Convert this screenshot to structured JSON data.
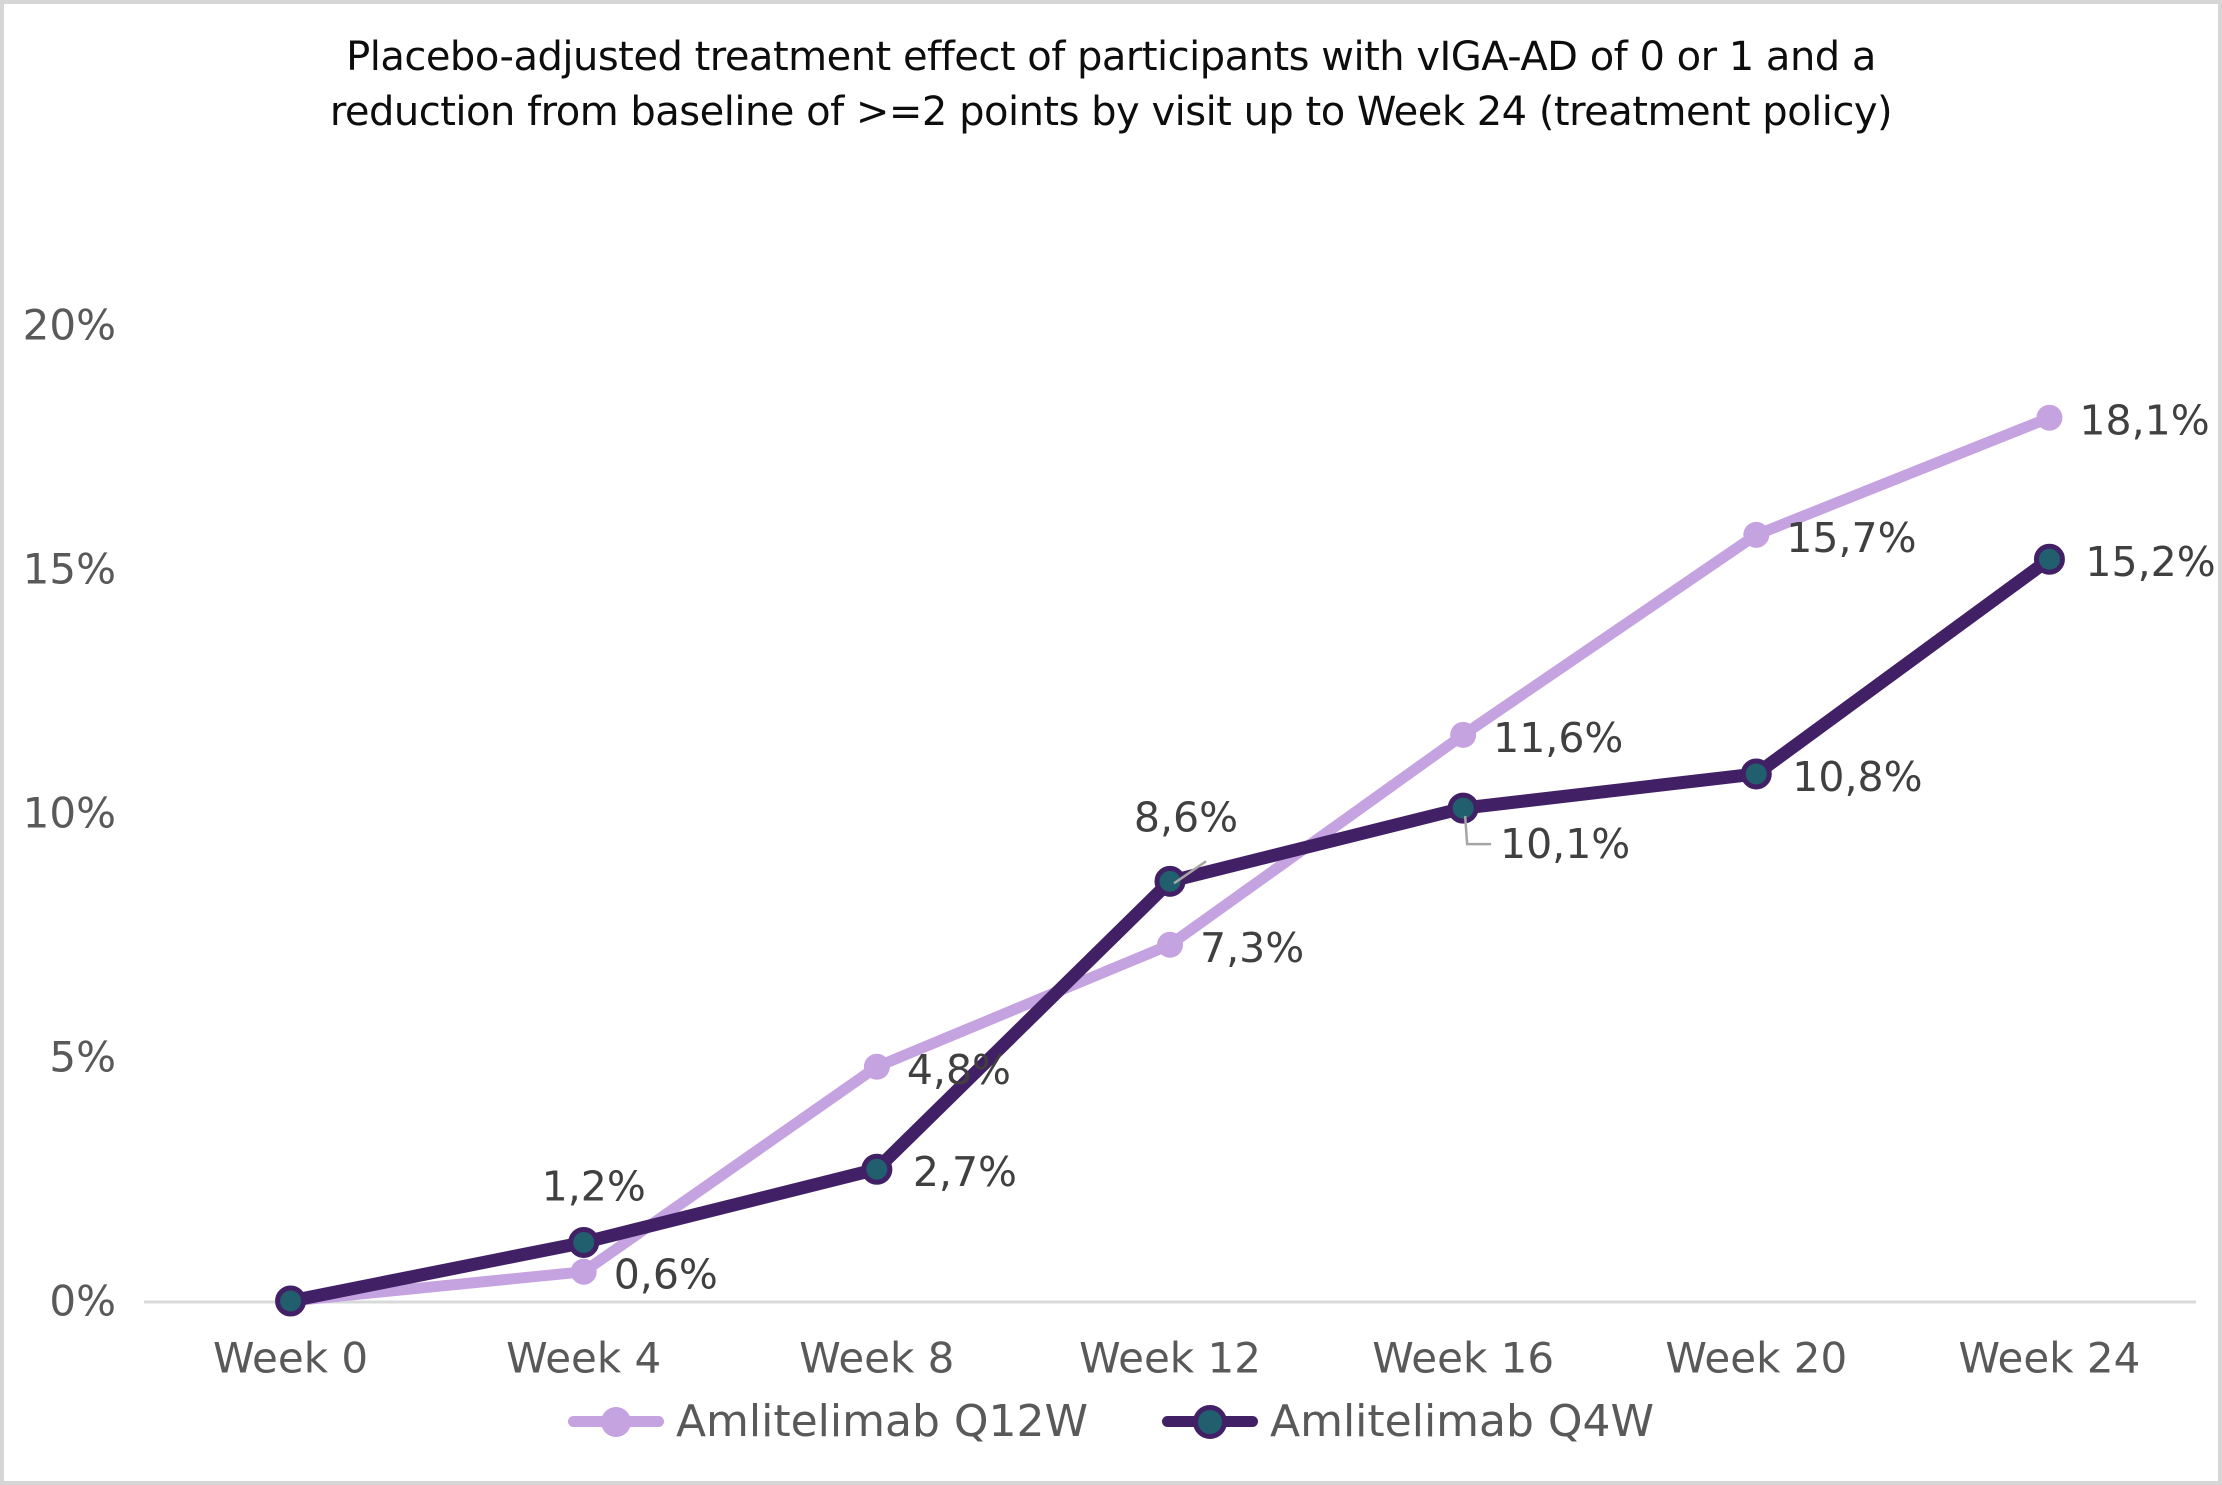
{
  "title": {
    "line1": "Placebo-adjusted treatment effect of participants with vIGA-AD of 0 or 1 and a",
    "line2": "reduction from baseline of >=2 points by visit up to Week 24 (treatment policy)"
  },
  "chart_data": {
    "type": "line",
    "categories": [
      "Week 0",
      "Week 4",
      "Week 8",
      "Week 12",
      "Week 16",
      "Week 20",
      "Week 24"
    ],
    "y_axis": {
      "tick_labels": [
        "0%",
        "5%",
        "10%",
        "15%",
        "20%"
      ],
      "tick_values": [
        0,
        5,
        10,
        15,
        20
      ],
      "range": [
        0,
        20
      ]
    },
    "grid": false,
    "legend_position": "bottom",
    "series": [
      {
        "name": "Amlitelimab Q12W",
        "color": "#c5a3e1",
        "marker": "circle",
        "values": [
          0,
          0.6,
          4.8,
          7.3,
          11.6,
          15.7,
          18.1
        ],
        "labels": [
          "",
          "0,6%",
          "4,8%",
          "7,3%",
          "11,6%",
          "15,7%",
          "18,1%"
        ]
      },
      {
        "name": "Amlitelimab Q4W",
        "color": "#412066",
        "marker": "circle",
        "marker_fill": "#215e6e",
        "values": [
          0,
          1.2,
          2.7,
          8.6,
          10.1,
          10.8,
          15.2
        ],
        "labels": [
          "",
          "1,2%",
          "2,7%",
          "8,6%",
          "10,1%",
          "10,8%",
          "15,2%"
        ]
      }
    ],
    "palette": {
      "axis_line": "#d9d9d9",
      "axis_text": "#595959",
      "data_label_text": "#404040",
      "leader_line": "#a6a6a6",
      "frame_border": "#d6d6d6"
    }
  }
}
